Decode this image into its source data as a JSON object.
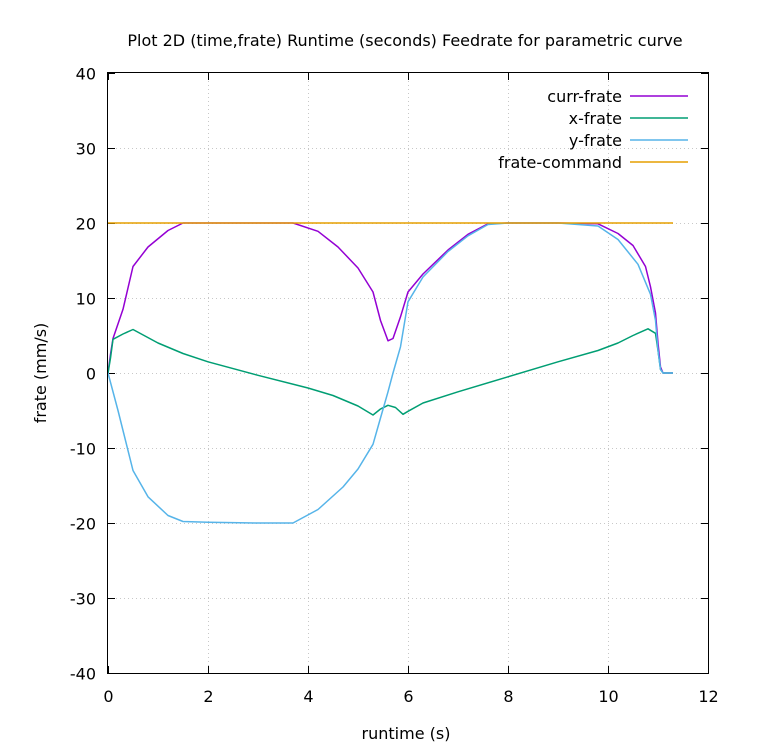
{
  "chart_data": {
    "type": "line",
    "title": "Plot 2D (time,frate) Runtime (seconds) Feedrate for parametric curve",
    "xlabel": "runtime (s)",
    "ylabel": "frate (mm/s)",
    "xlim": [
      0,
      12
    ],
    "ylim": [
      -40,
      40
    ],
    "xticks": [
      0,
      2,
      4,
      6,
      8,
      10,
      12
    ],
    "yticks": [
      -40,
      -30,
      -20,
      -10,
      0,
      10,
      20,
      30,
      40
    ],
    "grid": true,
    "legend_position": "top-right",
    "series": [
      {
        "name": "curr-frate",
        "color": "#9400d3",
        "x": [
          0,
          0.05,
          0.1,
          0.3,
          0.5,
          0.8,
          1.2,
          1.5,
          2.0,
          3.0,
          3.7,
          4.2,
          4.6,
          5.0,
          5.3,
          5.45,
          5.6,
          5.7,
          5.85,
          6.0,
          6.3,
          6.8,
          7.2,
          7.6,
          8.0,
          9.0,
          9.8,
          10.2,
          10.5,
          10.75,
          10.85,
          10.95,
          11.0,
          11.05,
          11.1,
          11.3
        ],
        "values": [
          0,
          2.5,
          4.6,
          8.5,
          14.2,
          16.8,
          19.0,
          20,
          20,
          20,
          20,
          18.9,
          16.8,
          14.0,
          10.8,
          7.0,
          4.3,
          4.6,
          7.5,
          10.8,
          13.2,
          16.4,
          18.5,
          19.9,
          20,
          20,
          19.9,
          18.6,
          17.0,
          14.2,
          11.5,
          8.0,
          4.0,
          0.8,
          0,
          0
        ]
      },
      {
        "name": "x-frate",
        "color": "#009e73",
        "x": [
          0,
          0.05,
          0.1,
          0.3,
          0.5,
          1.0,
          1.5,
          2.0,
          3.0,
          4.0,
          4.5,
          5.0,
          5.3,
          5.45,
          5.6,
          5.75,
          5.9,
          6.0,
          6.3,
          7.0,
          8.0,
          9.0,
          9.8,
          10.2,
          10.5,
          10.8,
          10.95,
          11.0,
          11.05,
          11.1,
          11.3
        ],
        "values": [
          0,
          2.0,
          4.5,
          5.2,
          5.8,
          4.0,
          2.6,
          1.5,
          -0.3,
          -2.0,
          -3.0,
          -4.4,
          -5.6,
          -4.8,
          -4.3,
          -4.6,
          -5.5,
          -5.1,
          -4.0,
          -2.5,
          -0.5,
          1.5,
          3.0,
          4.0,
          5.0,
          5.9,
          5.3,
          3.0,
          0.5,
          0,
          0
        ]
      },
      {
        "name": "y-frate",
        "color": "#56b4e9",
        "x": [
          0,
          0.2,
          0.5,
          0.8,
          1.2,
          1.5,
          2.0,
          3.0,
          3.7,
          4.2,
          4.7,
          5.0,
          5.3,
          5.45,
          5.6,
          5.7,
          5.85,
          6.0,
          6.3,
          6.8,
          7.2,
          7.6,
          8.0,
          9.0,
          9.8,
          10.2,
          10.6,
          10.85,
          10.95,
          11.0,
          11.05,
          11.1,
          11.3
        ],
        "values": [
          0,
          -5.0,
          -13.0,
          -16.5,
          -19.0,
          -19.8,
          -19.9,
          -20,
          -20,
          -18.2,
          -15.2,
          -12.8,
          -9.5,
          -6.0,
          -2.5,
          0,
          3.5,
          9.5,
          12.8,
          16.2,
          18.3,
          19.8,
          20,
          20,
          19.6,
          17.8,
          14.5,
          10.5,
          7.0,
          3.0,
          0.5,
          0,
          0
        ]
      },
      {
        "name": "frate-command",
        "color": "#e69f00",
        "x": [
          0,
          11.3
        ],
        "values": [
          20,
          20
        ]
      }
    ]
  }
}
